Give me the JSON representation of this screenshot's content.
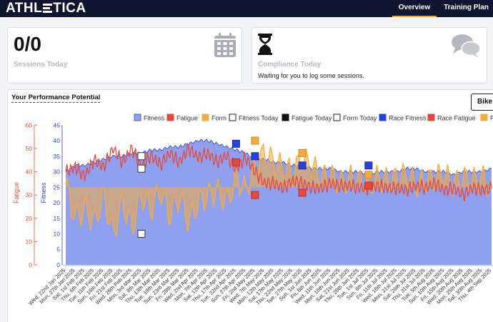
{
  "app": {
    "logo": "ATHLETICA"
  },
  "nav": {
    "overview": "Overview",
    "training_plan": "Training Plan"
  },
  "cards": {
    "sessions": {
      "value": "0/0",
      "label": "Sessions Today",
      "icon": "calendar-icon"
    },
    "compliance": {
      "label": "Compliance Today",
      "text": "Waiting for you to log some sessions.",
      "icon": "hourglass-icon",
      "chat_icon": "chat-bubbles-icon"
    }
  },
  "performance": {
    "title": "Your Performance Potential",
    "sport_button": "Bike"
  },
  "colors": {
    "fitness": "#8ea0ee",
    "fatigue": "#e8493c",
    "form": "#f5ab3c",
    "race_fitness": "#2144e3",
    "navy": "#0e1631",
    "accent": "#f5a623"
  },
  "chart_data": {
    "type": "area",
    "x_dates": [
      "Wed, 22nd Jan 2025",
      "Mon, 27th Jan 2025",
      "Sat, 1st Feb 2025",
      "Thu, 6th Feb 2025",
      "Tue, 11th Feb 2025",
      "Sun, 16th Feb 2025",
      "Fri, 21st Feb 2025",
      "Wed, 26th Feb 2025",
      "Mon, 3rd Mar 2025",
      "Sat, 8th Mar 2025",
      "Thu, 13th Mar 2025",
      "Tue, 18th Mar 2025",
      "Sun, 23rd Mar 2025",
      "Fri, 28th Mar 2025",
      "Wed, 2nd Apr 2025",
      "Mon, 7th Apr 2025",
      "Sat, 12th Apr 2025",
      "Thu, 17th Apr 2025",
      "Tue, 22nd Apr 2025",
      "Sun, 27th Apr 2025",
      "Fri, 2nd May 2025",
      "Wed, 7th May 2025",
      "Mon, 12th May 2025",
      "Sat, 17th May 2025",
      "Thu, 22nd May 2025",
      "Tue, 27th May 2025",
      "Sun, 1st Jun 2025",
      "Fri, 6th Jun 2025",
      "Wed, 11th Jun 2025",
      "Mon, 16th Jun 2025",
      "Sat, 21st Jun 2025",
      "Thu, 26th Jun 2025",
      "Tue, 1st Jul 2025",
      "Sun, 6th Jul 2025",
      "Fri, 11th Jul 2025",
      "Wed, 16th Jul 2025",
      "Mon, 21st Jul 2025",
      "Sat, 26th Jul 2025",
      "Thu, 31st Jul 2025",
      "Tue, 5th Aug 2025",
      "Sun, 10th Aug 2025",
      "Fri, 15th Aug 2025",
      "Wed, 20th Aug 2025",
      "Mon, 25th Aug 2025",
      "Sat, 30th Aug 2025",
      "Thu, 4th Sep 2025"
    ],
    "y_left": {
      "label": "Fatigue",
      "ticks": [
        "0",
        "10",
        "20",
        "30",
        "40",
        "50",
        "60"
      ],
      "range": [
        0,
        60
      ]
    },
    "y_right": {
      "label": "Fitness",
      "ticks": [
        "0",
        "5",
        "10",
        "15",
        "20",
        "25",
        "30",
        "35",
        "40",
        "45"
      ],
      "range": [
        0,
        45
      ]
    },
    "legend": [
      "Fitness",
      "Fatigue",
      "Form",
      "Fitness Today",
      "Fatigue Today",
      "Form Today",
      "Race Fitness",
      "Race Fatigue",
      "Race Form"
    ],
    "legend_visible": [
      "Fitness",
      "Fatigue",
      "Form",
      "Fitness Today",
      "Fatigue Today",
      "Form Today",
      "Race Fitness",
      "Race Fatigue",
      "R"
    ],
    "grid": false,
    "form_midline_fitness_units": 25,
    "series": [
      {
        "name": "Fitness",
        "values": [
          30,
          32,
          32,
          33,
          34,
          35,
          35,
          36,
          36,
          37,
          37,
          38,
          38,
          39,
          40,
          40,
          39,
          38,
          37,
          36,
          34,
          34,
          33,
          33,
          32,
          32,
          31,
          31,
          31,
          30,
          30,
          30,
          29,
          30,
          30,
          30,
          31,
          31,
          30,
          30,
          30,
          29,
          30,
          30,
          30,
          31
        ]
      },
      {
        "name": "Fatigue",
        "values": [
          40,
          42,
          38,
          45,
          42,
          50,
          44,
          50,
          42,
          47,
          43,
          48,
          44,
          50,
          46,
          48,
          44,
          47,
          41,
          46,
          40,
          35,
          35,
          33,
          36,
          35,
          33,
          33,
          35,
          34,
          34,
          33,
          33,
          34,
          33,
          33,
          32,
          34,
          33,
          35,
          32,
          33,
          30,
          33,
          32,
          33
        ]
      },
      {
        "name": "Form",
        "values": [
          26,
          15,
          18,
          14,
          22,
          10,
          20,
          12,
          22,
          18,
          24,
          16,
          22,
          14,
          20,
          22,
          24,
          20,
          28,
          24,
          32,
          36,
          33,
          31,
          30,
          34,
          32,
          28,
          29,
          26,
          28,
          27,
          26,
          28,
          27,
          28,
          29,
          26,
          27,
          28,
          29,
          26,
          28,
          27,
          28,
          25
        ]
      }
    ],
    "markers": {
      "fitness_today": [
        {
          "x": "Mon, 3rd Mar 2025",
          "y": 35
        },
        {
          "x": "Mon, 3rd Mar 2025",
          "y": 31
        }
      ],
      "form_today": [
        {
          "x": "Mon, 3rd Mar 2025",
          "y": 10
        }
      ],
      "race_fitness": [
        {
          "x": "Tue, 22nd Apr 2025",
          "y": 39
        },
        {
          "x": "Fri, 2nd May 2025",
          "y": 35
        },
        {
          "x": "Tue, 27th May 2025",
          "y": 32
        },
        {
          "x": "Tue, 1st Jul 2025",
          "y": 32
        }
      ],
      "race_fatigue": [
        {
          "x": "Tue, 22nd Apr 2025",
          "y": 44
        },
        {
          "x": "Fri, 2nd May 2025",
          "y": 30
        },
        {
          "x": "Tue, 27th May 2025",
          "y": 31
        },
        {
          "x": "Tue, 1st Jul 2025",
          "y": 34
        }
      ],
      "race_form": [
        {
          "x": "Fri, 2nd May 2025",
          "y": 40
        },
        {
          "x": "Tue, 27th May 2025",
          "y": 36
        },
        {
          "x": "Tue, 1st Jul 2025",
          "y": 29
        }
      ]
    }
  }
}
